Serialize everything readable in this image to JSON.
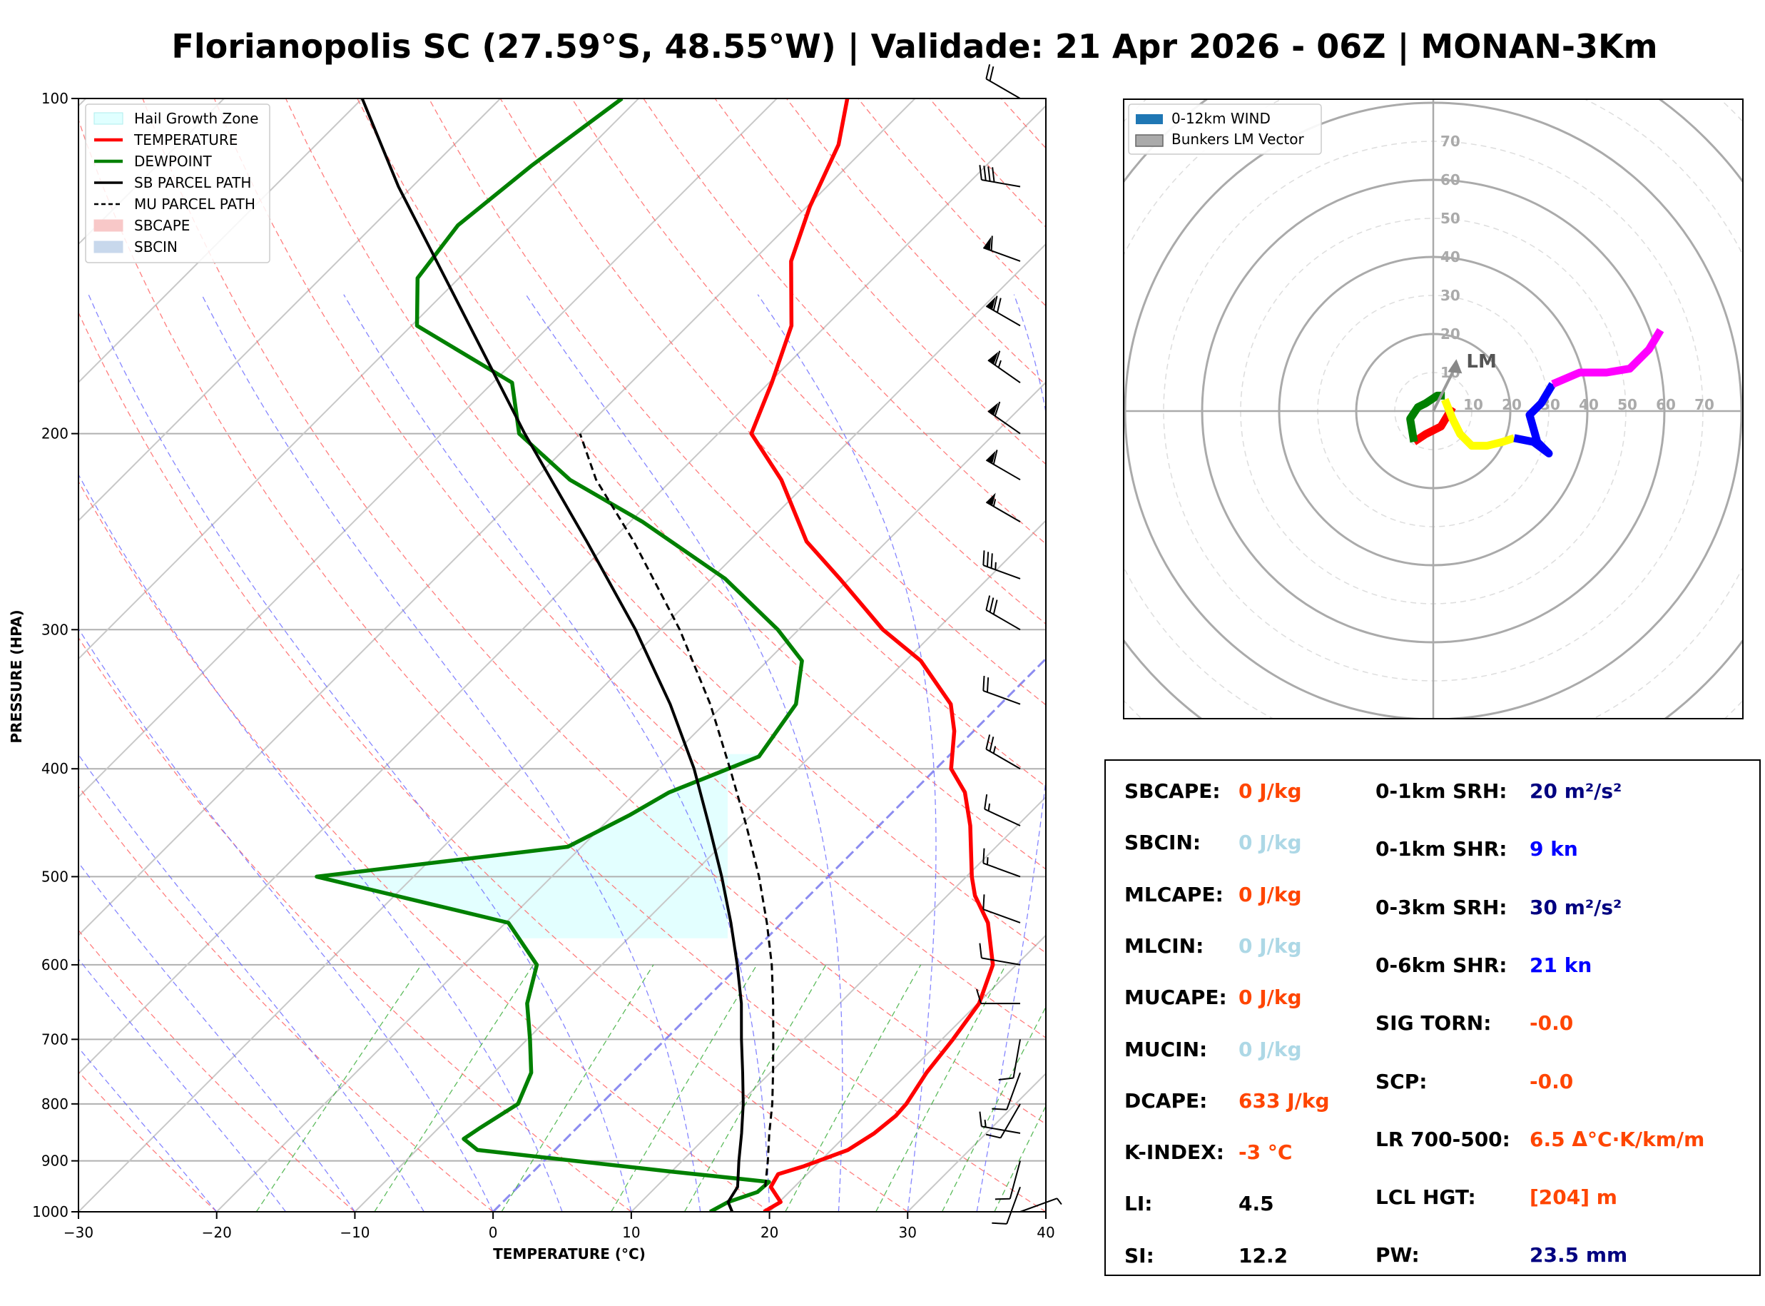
{
  "title": "Florianopolis SC (27.59°S, 48.55°W) | Validade: 21 Apr 2026 - 06Z | MONAN-3Km",
  "colors": {
    "temperature": "#ff0000",
    "dewpoint": "#008000",
    "sb_parcel": "#000000",
    "hail_zone": "#e0ffff",
    "isotherm_zero": "#8c8cf0",
    "dry_adiabat": "#ff6666",
    "moist_adiabat": "#6666ff",
    "mixing_ratio": "#33aa33",
    "orange_value": "#ff4500",
    "light_value": "#add8e6",
    "navy_value": "#000080",
    "blue_value": "#0000ff",
    "black_value": "#000000"
  },
  "chart_data": [
    {
      "type": "line",
      "chart": "skew-t",
      "xlabel": "TEMPERATURE (°C)",
      "ylabel": "PRESSURE (HPA)",
      "xlim": [
        -30,
        40
      ],
      "ylim": [
        1000,
        100
      ],
      "y_scale": "log",
      "x_ticks": [
        "−30",
        "−20",
        "−10",
        "0",
        "10",
        "20",
        "30",
        "40"
      ],
      "y_ticks": [
        "1000",
        "900",
        "800",
        "700",
        "600",
        "500",
        "400",
        "300",
        "200",
        "100"
      ],
      "legend": {
        "position": "top-left",
        "entries": [
          "Hail Growth Zone",
          "TEMPERATURE",
          "DEWPOINT",
          "SB PARCEL PATH",
          "MU PARCEL PATH",
          "SBCAPE",
          "SBCIN"
        ]
      },
      "series": [
        {
          "name": "TEMPERATURE",
          "points": [
            [
              1000,
              19.6
            ],
            [
              980,
              20.1
            ],
            [
              950,
              18.3
            ],
            [
              925,
              17.9
            ],
            [
              910,
              19.2
            ],
            [
              880,
              21.2
            ],
            [
              850,
              21.9
            ],
            [
              820,
              22.2
            ],
            [
              800,
              22.1
            ],
            [
              750,
              21.3
            ],
            [
              700,
              20.8
            ],
            [
              650,
              20.1
            ],
            [
              600,
              18.3
            ],
            [
              550,
              14.9
            ],
            [
              520,
              12.0
            ],
            [
              500,
              10.4
            ],
            [
              450,
              6.6
            ],
            [
              420,
              3.8
            ],
            [
              400,
              1.1
            ],
            [
              370,
              -1.4
            ],
            [
              350,
              -3.6
            ],
            [
              320,
              -8.9
            ],
            [
              300,
              -13.9
            ],
            [
              270,
              -20.7
            ],
            [
              250,
              -25.8
            ],
            [
              220,
              -32.1
            ],
            [
              200,
              -37.6
            ],
            [
              180,
              -39.8
            ],
            [
              160,
              -42.5
            ],
            [
              140,
              -47.2
            ],
            [
              125,
              -49.8
            ],
            [
              110,
              -52.2
            ],
            [
              100,
              -54.9
            ]
          ]
        },
        {
          "name": "DEWPOINT",
          "points": [
            [
              1000,
              15.7
            ],
            [
              980,
              16.3
            ],
            [
              960,
              17.7
            ],
            [
              940,
              17.8
            ],
            [
              920,
              9.9
            ],
            [
              880,
              -5.6
            ],
            [
              860,
              -7.4
            ],
            [
              840,
              -7.0
            ],
            [
              800,
              -6.0
            ],
            [
              750,
              -7.3
            ],
            [
              700,
              -9.8
            ],
            [
              650,
              -12.6
            ],
            [
              600,
              -14.7
            ],
            [
              550,
              -19.8
            ],
            [
              500,
              -37.0
            ],
            [
              470,
              -21.0
            ],
            [
              440,
              -18.8
            ],
            [
              420,
              -17.6
            ],
            [
              390,
              -13.7
            ],
            [
              350,
              -14.8
            ],
            [
              320,
              -17.5
            ],
            [
              300,
              -21.5
            ],
            [
              270,
              -29.0
            ],
            [
              240,
              -39.1
            ],
            [
              220,
              -47.4
            ],
            [
              200,
              -54.4
            ],
            [
              180,
              -58.6
            ],
            [
              160,
              -69.6
            ],
            [
              145,
              -73.0
            ],
            [
              130,
              -73.9
            ],
            [
              115,
              -72.9
            ],
            [
              100,
              -71.2
            ]
          ]
        },
        {
          "name": "SB PARCEL PATH",
          "points": [
            [
              1000,
              17.3
            ],
            [
              980,
              16.3
            ],
            [
              950,
              15.9
            ],
            [
              900,
              14.1
            ],
            [
              850,
              12.3
            ],
            [
              800,
              10.3
            ],
            [
              750,
              8.0
            ],
            [
              700,
              5.5
            ],
            [
              650,
              2.9
            ],
            [
              600,
              -0.2
            ],
            [
              550,
              -3.7
            ],
            [
              500,
              -7.7
            ],
            [
              450,
              -12.3
            ],
            [
              400,
              -17.5
            ],
            [
              350,
              -23.9
            ],
            [
              300,
              -31.8
            ],
            [
              250,
              -41.7
            ],
            [
              200,
              -54.0
            ],
            [
              150,
              -69.2
            ],
            [
              120,
              -81.0
            ],
            [
              100,
              -90.0
            ]
          ]
        },
        {
          "name": "MU PARCEL PATH",
          "points": [
            [
              950,
              17.9
            ],
            [
              900,
              16.2
            ],
            [
              850,
              14.3
            ],
            [
              800,
              12.4
            ],
            [
              750,
              10.2
            ],
            [
              700,
              7.8
            ],
            [
              650,
              5.2
            ],
            [
              600,
              2.3
            ],
            [
              550,
              -1.1
            ],
            [
              500,
              -5.0
            ],
            [
              450,
              -9.6
            ],
            [
              400,
              -14.9
            ],
            [
              350,
              -21.0
            ],
            [
              300,
              -28.6
            ],
            [
              250,
              -38.3
            ],
            [
              220,
              -45.5
            ],
            [
              200,
              -50.0
            ]
          ]
        }
      ],
      "hail_growth_zone": {
        "p_bottom": 568,
        "p_top": 385
      },
      "wind_barbs_kn": [
        [
          1000,
          5,
          70
        ],
        [
          950,
          10,
          200
        ],
        [
          900,
          10,
          195
        ],
        [
          850,
          15,
          280
        ],
        [
          800,
          10,
          210
        ],
        [
          750,
          10,
          200
        ],
        [
          700,
          10,
          190
        ],
        [
          650,
          10,
          270
        ],
        [
          600,
          10,
          280
        ],
        [
          550,
          10,
          290
        ],
        [
          500,
          15,
          290
        ],
        [
          450,
          15,
          295
        ],
        [
          400,
          25,
          300
        ],
        [
          350,
          20,
          290
        ],
        [
          300,
          30,
          300
        ],
        [
          270,
          35,
          290
        ],
        [
          240,
          55,
          300
        ],
        [
          220,
          60,
          300
        ],
        [
          200,
          60,
          305
        ],
        [
          180,
          65,
          305
        ],
        [
          160,
          70,
          300
        ],
        [
          140,
          60,
          290
        ],
        [
          120,
          40,
          280
        ],
        [
          100,
          20,
          300
        ]
      ]
    },
    {
      "type": "line",
      "chart": "hodograph",
      "legend": {
        "position": "top-left",
        "entries": [
          "0-12km WIND",
          "Bunkers LM Vector"
        ]
      },
      "radial_ticks": [
        "10",
        "20",
        "30",
        "40",
        "50",
        "60",
        "70"
      ],
      "bunkers_lm": {
        "u": 6,
        "v": 12,
        "label": "LM"
      },
      "series": [
        {
          "segment": "0-3km",
          "color": "#ff0000",
          "points": [
            [
              5,
              1
            ],
            [
              2,
              -4
            ],
            [
              -2,
              -6
            ],
            [
              -5,
              -8
            ]
          ]
        },
        {
          "segment": "3-6km",
          "color": "#008000",
          "points": [
            [
              -5,
              -8
            ],
            [
              -6,
              -2
            ],
            [
              -4,
              1
            ],
            [
              -2,
              2
            ],
            [
              1,
              4
            ],
            [
              3,
              4
            ]
          ]
        },
        {
          "segment": "6-9km",
          "color": "#ffff00",
          "points": [
            [
              3,
              3
            ],
            [
              5,
              -2
            ],
            [
              7,
              -6
            ],
            [
              10,
              -9
            ],
            [
              14,
              -9
            ],
            [
              18,
              -8
            ],
            [
              21,
              -7
            ]
          ]
        },
        {
          "segment": "9-12km",
          "color": "#0000ff",
          "points": [
            [
              21,
              -7
            ],
            [
              26,
              -8
            ],
            [
              30,
              -11
            ],
            [
              27,
              -8
            ],
            [
              25,
              -1
            ],
            [
              28,
              2
            ],
            [
              31,
              7
            ]
          ]
        },
        {
          "segment": "12+km",
          "color": "#ff00ff",
          "points": [
            [
              31,
              7
            ],
            [
              38,
              10
            ],
            [
              45,
              10
            ],
            [
              51,
              11
            ],
            [
              56,
              16
            ],
            [
              59,
              21
            ]
          ]
        }
      ]
    }
  ],
  "stats": {
    "left": [
      {
        "label": "SBCAPE:",
        "value": "0 J/kg",
        "color": "#ff4500"
      },
      {
        "label": "SBCIN:",
        "value": "0 J/kg",
        "color": "#add8e6"
      },
      {
        "label": "MLCAPE:",
        "value": "0 J/kg",
        "color": "#ff4500"
      },
      {
        "label": "MLCIN:",
        "value": "0 J/kg",
        "color": "#add8e6"
      },
      {
        "label": "MUCAPE:",
        "value": "0 J/kg",
        "color": "#ff4500"
      },
      {
        "label": "MUCIN:",
        "value": "0 J/kg",
        "color": "#add8e6"
      },
      {
        "label": "DCAPE:",
        "value": "633 J/kg",
        "color": "#ff4500"
      },
      {
        "label": "K-INDEX:",
        "value": "-3 °C",
        "color": "#ff4500"
      },
      {
        "label": "LI:",
        "value": "4.5",
        "color": "#000000"
      },
      {
        "label": "SI:",
        "value": "12.2",
        "color": "#000000"
      }
    ],
    "right": [
      {
        "label": "0-1km SRH:",
        "value": "20 m²/s²",
        "color": "#000080"
      },
      {
        "label": "0-1km SHR:",
        "value": "9 kn",
        "color": "#0000ff"
      },
      {
        "label": "0-3km SRH:",
        "value": "30 m²/s²",
        "color": "#000080"
      },
      {
        "label": "0-6km SHR:",
        "value": "21 kn",
        "color": "#0000ff"
      },
      {
        "label": "SIG TORN:",
        "value": "-0.0",
        "color": "#ff4500"
      },
      {
        "label": "SCP:",
        "value": "-0.0",
        "color": "#ff4500"
      },
      {
        "label": "LR 700-500:",
        "value": "6.5 Δ°C·K/km/m",
        "color": "#ff4500"
      },
      {
        "label": "LCL HGT:",
        "value": "[204] m",
        "color": "#ff4500"
      },
      {
        "label": "PW:",
        "value": "23.5 mm",
        "color": "#000080"
      }
    ]
  }
}
